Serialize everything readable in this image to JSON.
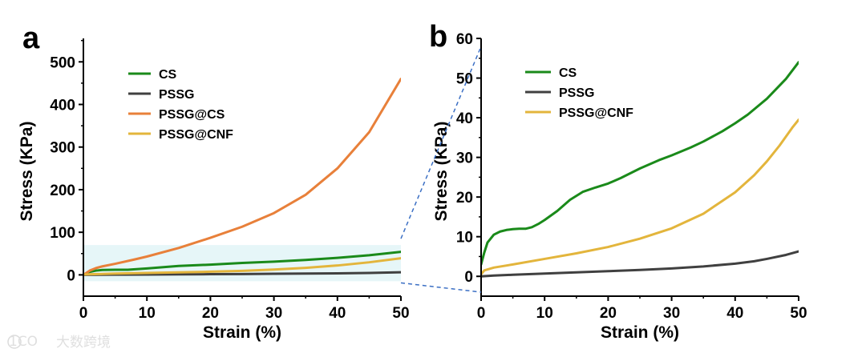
{
  "colors": {
    "CS": "#1a8a1a",
    "PSSG": "#404040",
    "PSSG@CS": "#e8803a",
    "PSSG@CNF": "#e3b53c",
    "highlight": "#e6f6f8",
    "connector": "#3b6fc4"
  },
  "watermark": {
    "text": "大数跨境",
    "logo": "1CO"
  },
  "chart_data": [
    {
      "panel": "a",
      "type": "line",
      "xlabel": "Strain (%)",
      "ylabel": "Stress (KPa)",
      "xlim": [
        0,
        50
      ],
      "ylim": [
        -50,
        555
      ],
      "xticks": [
        0,
        10,
        20,
        30,
        40,
        50
      ],
      "yticks": [
        0,
        100,
        200,
        300,
        400,
        500
      ],
      "legend_position": "top-left",
      "zoom_region": {
        "x": [
          0,
          50
        ],
        "y": [
          -15,
          70
        ]
      },
      "series": [
        {
          "name": "CS",
          "x": [
            0,
            1,
            2,
            3,
            5,
            7,
            10,
            15,
            20,
            25,
            30,
            35,
            40,
            45,
            50
          ],
          "values": [
            0,
            7,
            10,
            11.5,
            12,
            12,
            15,
            21,
            24,
            28,
            31,
            35,
            40,
            46,
            54
          ]
        },
        {
          "name": "PSSG",
          "x": [
            0,
            5,
            10,
            15,
            20,
            25,
            30,
            35,
            40,
            45,
            50
          ],
          "values": [
            0,
            0.5,
            0.8,
            1.2,
            1.6,
            2.0,
            2.5,
            3.0,
            3.6,
            4.6,
            6.2
          ]
        },
        {
          "name": "PSSG@CS",
          "x": [
            0,
            1,
            2,
            3,
            5,
            8,
            10,
            15,
            20,
            25,
            30,
            35,
            40,
            45,
            50
          ],
          "values": [
            0,
            10,
            16,
            20,
            26,
            36,
            43,
            63,
            87,
            113,
            145,
            188,
            250,
            335,
            460
          ]
        },
        {
          "name": "PSSG@CNF",
          "x": [
            0,
            5,
            10,
            15,
            20,
            25,
            30,
            35,
            40,
            45,
            50
          ],
          "values": [
            1,
            3,
            4.5,
            5.8,
            7.5,
            9.5,
            12.5,
            16.5,
            22,
            29.5,
            39
          ]
        }
      ]
    },
    {
      "panel": "b",
      "type": "line",
      "xlabel": "Strain (%)",
      "ylabel": "Stress (KPa)",
      "xlim": [
        0,
        50
      ],
      "ylim": [
        -5,
        60
      ],
      "xticks": [
        0,
        10,
        20,
        30,
        40,
        50
      ],
      "yticks": [
        0,
        10,
        20,
        30,
        40,
        50,
        60
      ],
      "legend_position": "top-left",
      "series": [
        {
          "name": "CS",
          "x": [
            0,
            0.5,
            1,
            2,
            3,
            4,
            5,
            6,
            7,
            8,
            9,
            10,
            12,
            14,
            16,
            18,
            20,
            22,
            25,
            28,
            30,
            33,
            35,
            38,
            40,
            42,
            45,
            48,
            50
          ],
          "values": [
            3,
            6,
            8.5,
            10.5,
            11.3,
            11.7,
            11.9,
            12.0,
            12.0,
            12.4,
            13.2,
            14.2,
            16.5,
            19.3,
            21.3,
            22.4,
            23.4,
            24.8,
            27.2,
            29.3,
            30.5,
            32.5,
            34.0,
            36.6,
            38.6,
            40.8,
            44.8,
            49.8,
            54
          ]
        },
        {
          "name": "PSSG",
          "x": [
            0,
            2,
            5,
            10,
            15,
            20,
            25,
            30,
            35,
            40,
            43,
            45,
            48,
            50
          ],
          "values": [
            0,
            0.2,
            0.4,
            0.7,
            1.0,
            1.3,
            1.6,
            2.0,
            2.5,
            3.2,
            3.8,
            4.4,
            5.4,
            6.3
          ]
        },
        {
          "name": "PSSG@CNF",
          "x": [
            0,
            0.5,
            2,
            5,
            10,
            15,
            20,
            25,
            30,
            35,
            40,
            43,
            45,
            47,
            49,
            50
          ],
          "values": [
            0.5,
            1.5,
            2.2,
            3.0,
            4.4,
            5.8,
            7.4,
            9.5,
            12.1,
            15.8,
            21.2,
            25.5,
            29.0,
            33.0,
            37.5,
            39.5
          ]
        }
      ]
    }
  ]
}
